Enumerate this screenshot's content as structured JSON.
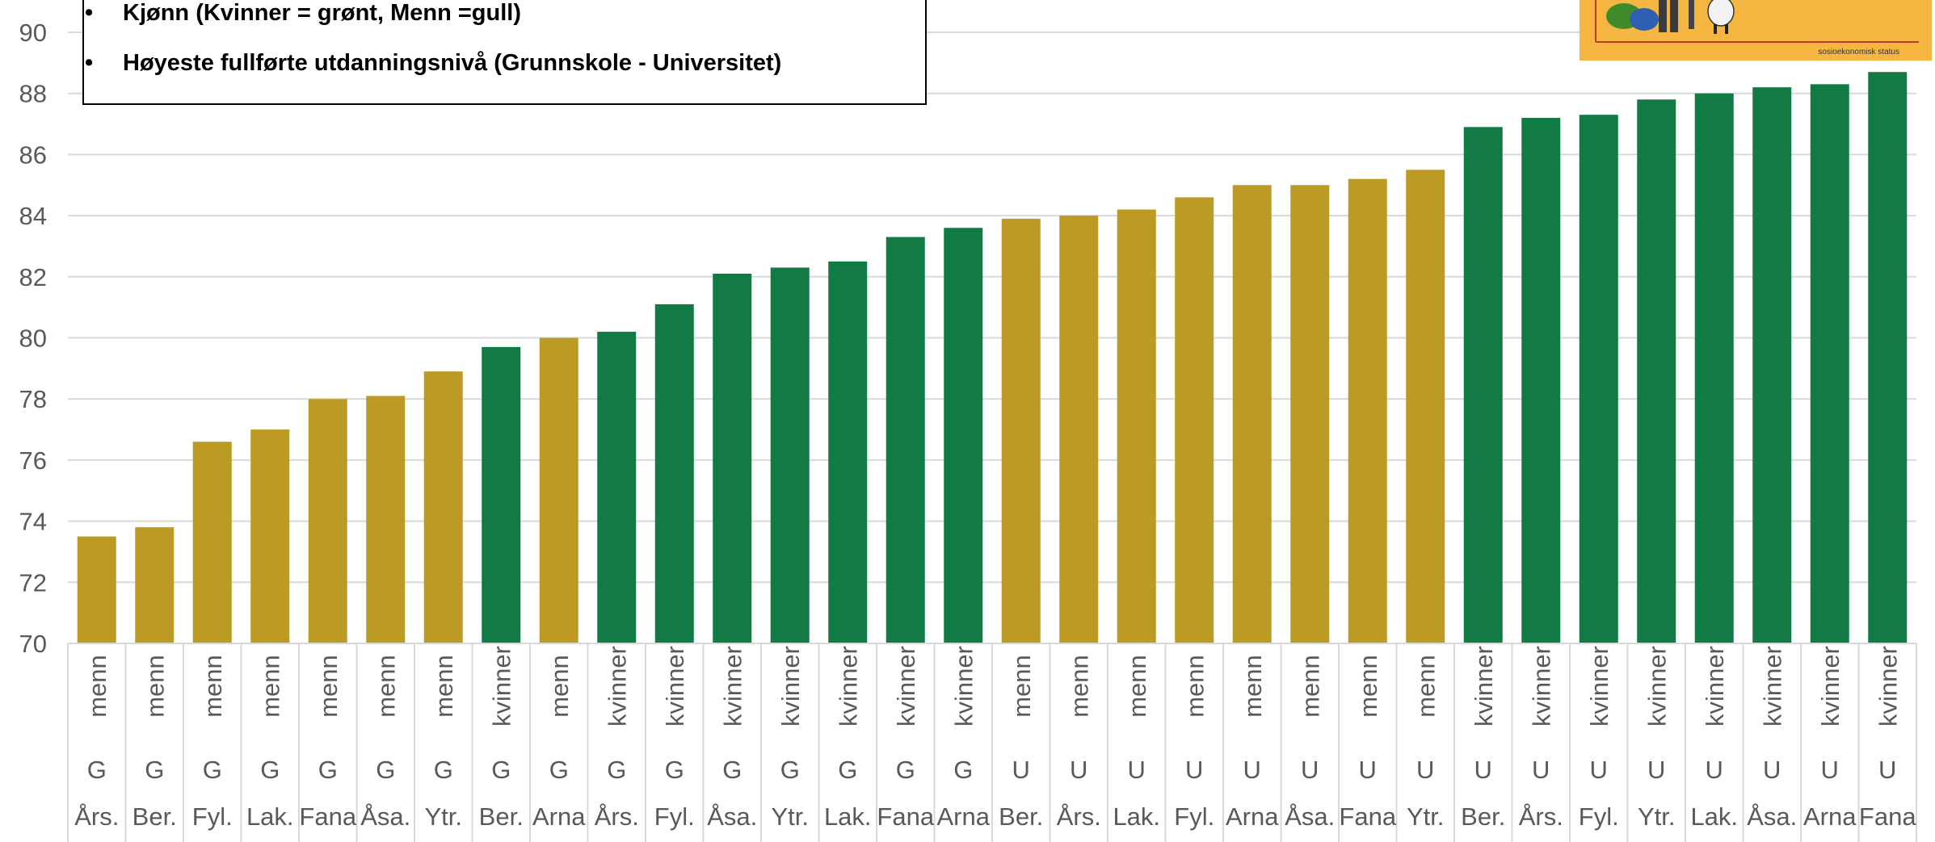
{
  "legend": {
    "items": [
      "Kjønn (Kvinner = grønt, Menn =gull)",
      "Høyeste fullførte utdanningsnivå (Grunnskole - Universitet)"
    ],
    "bullet": "•"
  },
  "thumbnail": {
    "caption": "sosioekonomisk status"
  },
  "colors": {
    "kvinner": "#127b45",
    "menn": "#bc9b25",
    "grid": "#d9d9d9",
    "text": "#595959"
  },
  "chart_data": {
    "type": "bar",
    "ylim": [
      70,
      90
    ],
    "yticks": [
      70,
      72,
      74,
      76,
      78,
      80,
      82,
      84,
      86,
      88,
      90
    ],
    "grid": true,
    "categories": [
      {
        "gender": "menn",
        "edu": "G",
        "place": "Års.",
        "value": 73.5
      },
      {
        "gender": "menn",
        "edu": "G",
        "place": "Ber.",
        "value": 73.8
      },
      {
        "gender": "menn",
        "edu": "G",
        "place": "Fyl.",
        "value": 76.6
      },
      {
        "gender": "menn",
        "edu": "G",
        "place": "Lak.",
        "value": 77.0
      },
      {
        "gender": "menn",
        "edu": "G",
        "place": "Fana",
        "value": 78.0
      },
      {
        "gender": "menn",
        "edu": "G",
        "place": "Åsa.",
        "value": 78.1
      },
      {
        "gender": "menn",
        "edu": "G",
        "place": "Ytr.",
        "value": 78.9
      },
      {
        "gender": "kvinner",
        "edu": "G",
        "place": "Ber.",
        "value": 79.7
      },
      {
        "gender": "menn",
        "edu": "G",
        "place": "Arna",
        "value": 80.0
      },
      {
        "gender": "kvinner",
        "edu": "G",
        "place": "Års.",
        "value": 80.2
      },
      {
        "gender": "kvinner",
        "edu": "G",
        "place": "Fyl.",
        "value": 81.1
      },
      {
        "gender": "kvinner",
        "edu": "G",
        "place": "Åsa.",
        "value": 82.1
      },
      {
        "gender": "kvinner",
        "edu": "G",
        "place": "Ytr.",
        "value": 82.3
      },
      {
        "gender": "kvinner",
        "edu": "G",
        "place": "Lak.",
        "value": 82.5
      },
      {
        "gender": "kvinner",
        "edu": "G",
        "place": "Fana",
        "value": 83.3
      },
      {
        "gender": "kvinner",
        "edu": "G",
        "place": "Arna",
        "value": 83.6
      },
      {
        "gender": "menn",
        "edu": "U",
        "place": "Ber.",
        "value": 83.9
      },
      {
        "gender": "menn",
        "edu": "U",
        "place": "Års.",
        "value": 84.0
      },
      {
        "gender": "menn",
        "edu": "U",
        "place": "Lak.",
        "value": 84.2
      },
      {
        "gender": "menn",
        "edu": "U",
        "place": "Fyl.",
        "value": 84.6
      },
      {
        "gender": "menn",
        "edu": "U",
        "place": "Arna",
        "value": 85.0
      },
      {
        "gender": "menn",
        "edu": "U",
        "place": "Åsa.",
        "value": 85.0
      },
      {
        "gender": "menn",
        "edu": "U",
        "place": "Fana",
        "value": 85.2
      },
      {
        "gender": "menn",
        "edu": "U",
        "place": "Ytr.",
        "value": 85.5
      },
      {
        "gender": "kvinner",
        "edu": "U",
        "place": "Ber.",
        "value": 86.9
      },
      {
        "gender": "kvinner",
        "edu": "U",
        "place": "Års.",
        "value": 87.2
      },
      {
        "gender": "kvinner",
        "edu": "U",
        "place": "Fyl.",
        "value": 87.3
      },
      {
        "gender": "kvinner",
        "edu": "U",
        "place": "Ytr.",
        "value": 87.8
      },
      {
        "gender": "kvinner",
        "edu": "U",
        "place": "Lak.",
        "value": 88.0
      },
      {
        "gender": "kvinner",
        "edu": "U",
        "place": "Åsa.",
        "value": 88.2
      },
      {
        "gender": "kvinner",
        "edu": "U",
        "place": "Arna",
        "value": 88.3
      },
      {
        "gender": "kvinner",
        "edu": "U",
        "place": "Fana",
        "value": 88.7
      }
    ]
  }
}
